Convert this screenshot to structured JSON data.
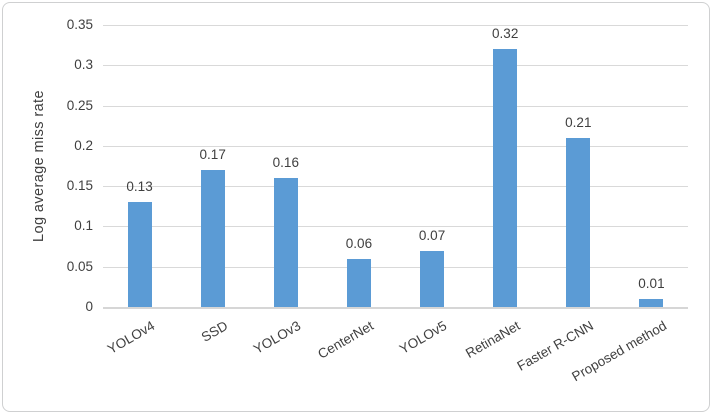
{
  "chart_data": {
    "type": "bar",
    "title": "",
    "categories": [
      "YOLOv4",
      "SSD",
      "YOLOv3",
      "CenterNet",
      "YOLOv5",
      "RetinaNet",
      "Faster R-CNN",
      "Proposed method"
    ],
    "values": [
      0.13,
      0.17,
      0.16,
      0.06,
      0.07,
      0.32,
      0.21,
      0.01
    ],
    "value_labels": [
      "0.13",
      "0.17",
      "0.16",
      "0.06",
      "0.07",
      "0.32",
      "0.21",
      "0.01"
    ],
    "xlabel": "",
    "ylabel": "Log average miss rate",
    "ylim": [
      0,
      0.35
    ],
    "yticks": [
      0,
      0.05,
      0.1,
      0.15,
      0.2,
      0.25,
      0.3,
      0.35
    ],
    "ytick_labels": [
      "0",
      "0.05",
      "0.1",
      "0.15",
      "0.2",
      "0.25",
      "0.3",
      "0.35"
    ],
    "grid": true,
    "legend": "none",
    "x_label_rotation_deg": -30,
    "colors": {
      "bar": "#5B9BD5",
      "gridline": "#d9d9d9",
      "axis_line": "#d6d6d6",
      "text": "#3f3f3f",
      "frame_border": "#cfd0d1",
      "background": "#ffffff"
    }
  }
}
